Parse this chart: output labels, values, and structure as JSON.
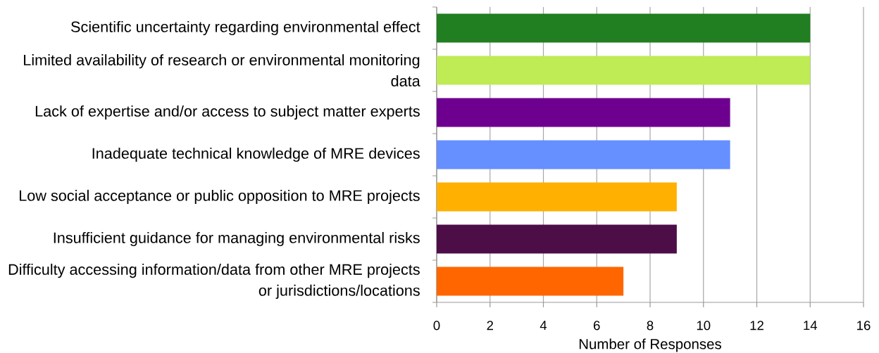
{
  "chart_data": {
    "type": "bar",
    "orientation": "horizontal",
    "categories": [
      "Scientific uncertainty regarding environmental effect",
      "Limited availability of research or environmental monitoring data",
      "Lack of expertise and/or access to subject matter experts",
      "Inadequate technical knowledge of MRE devices",
      "Low social acceptance or public opposition to MRE projects",
      "Insufficient guidance for managing environmental risks",
      "Difficulty accessing information/data from other MRE projects or jurisdictions/locations"
    ],
    "values": [
      14,
      14,
      11,
      11,
      9,
      9,
      7
    ],
    "colors": [
      "#217e21",
      "#bfeb55",
      "#6e0090",
      "#668fff",
      "#ffb000",
      "#4d0e48",
      "#ff6600"
    ],
    "xlabel": "Number of Responses",
    "xlim": [
      0,
      16
    ],
    "xticks": [
      0,
      2,
      4,
      6,
      8,
      10,
      12,
      14,
      16
    ],
    "grid": "x"
  }
}
